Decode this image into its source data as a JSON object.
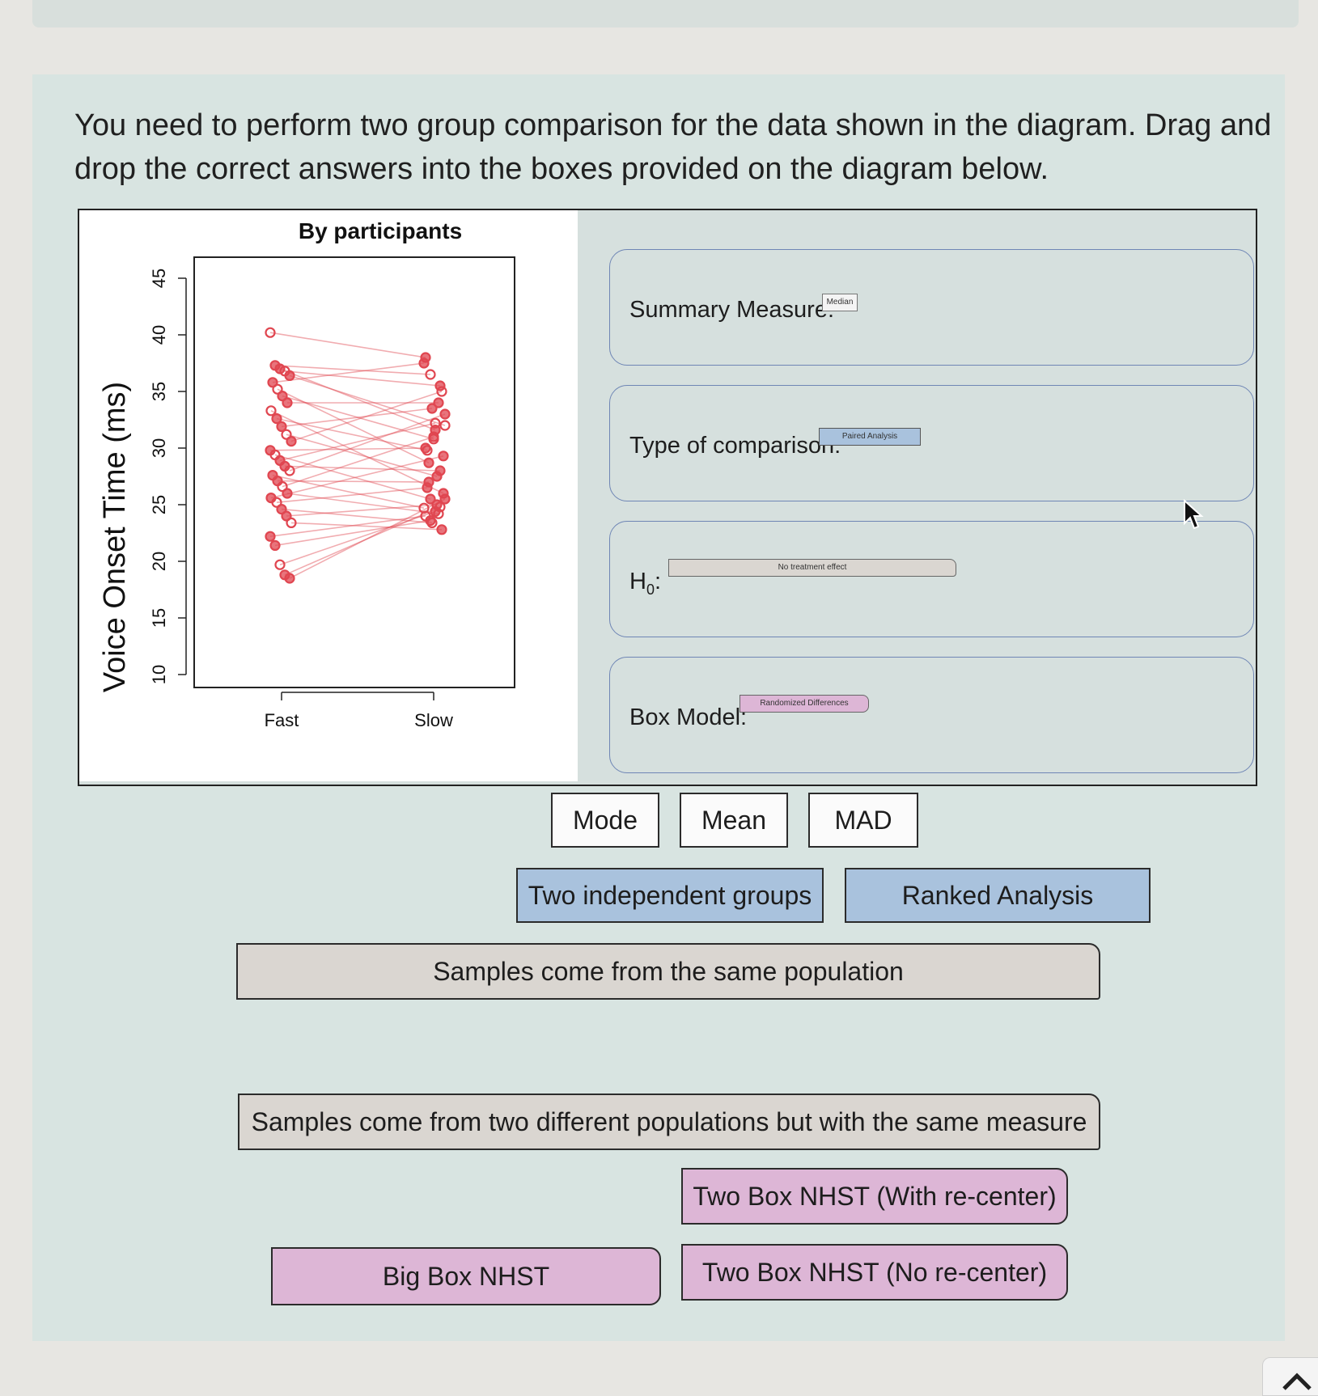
{
  "question": "You need to perform two group comparison for the data shown in the diagram. Drag and drop the correct answers into the boxes provided on the diagram below.",
  "chart_data": {
    "type": "line",
    "title": "By participants",
    "xlabel": "",
    "ylabel": "Voice Onset Time (ms)",
    "categories": [
      "Fast",
      "Slow"
    ],
    "ylim": [
      10,
      45
    ],
    "yticks": [
      "10",
      "15",
      "20",
      "25",
      "30",
      "35",
      "40",
      "45"
    ],
    "grid": false,
    "legend": "none",
    "series_color": "#e04650",
    "pairs": [
      [
        40.2,
        38.0
      ],
      [
        37.3,
        36.5
      ],
      [
        37.0,
        31.6
      ],
      [
        36.8,
        35.5
      ],
      [
        36.4,
        32.0
      ],
      [
        35.8,
        37.5
      ],
      [
        35.2,
        28.7
      ],
      [
        34.6,
        30.8
      ],
      [
        34.0,
        34.0
      ],
      [
        33.3,
        26.0
      ],
      [
        32.6,
        29.8
      ],
      [
        31.9,
        33.5
      ],
      [
        31.2,
        27.5
      ],
      [
        30.6,
        35.0
      ],
      [
        29.8,
        30.0
      ],
      [
        29.4,
        25.5
      ],
      [
        28.9,
        32.2
      ],
      [
        28.4,
        28.0
      ],
      [
        28.0,
        33.0
      ],
      [
        27.6,
        24.7
      ],
      [
        27.1,
        27.0
      ],
      [
        26.6,
        31.0
      ],
      [
        26.0,
        24.2
      ],
      [
        25.6,
        29.3
      ],
      [
        25.2,
        26.5
      ],
      [
        24.6,
        23.4
      ],
      [
        24.0,
        25.0
      ],
      [
        23.4,
        22.8
      ],
      [
        22.2,
        24.0
      ],
      [
        21.4,
        23.6
      ],
      [
        19.7,
        24.4
      ],
      [
        18.8,
        24.8
      ],
      [
        18.5,
        25.5
      ]
    ]
  },
  "dropzones": {
    "summary": {
      "label": "Summary Measure:",
      "placed": "Median"
    },
    "comparison": {
      "label": "Type of comparison:",
      "placed": "Paired Analysis"
    },
    "h0": {
      "label_main": "H",
      "label_sub": "0",
      "label_colon": ":",
      "placed": "No treatment effect"
    },
    "boxmodel": {
      "label": "Box Model:",
      "placed": "Randomized Differences"
    }
  },
  "choices": {
    "mode": "Mode",
    "mean": "Mean",
    "mad": "MAD",
    "two_groups": "Two independent groups",
    "ranked": "Ranked Analysis",
    "same_population": "Samples come from the same population",
    "two_populations": "Samples come from two different populations but with the same measure",
    "two_box_recenter": "Two Box NHST (With re-center)",
    "big_box": "Big Box NHST",
    "two_box_no_recenter": "Two Box NHST (No re-center)"
  },
  "colors": {
    "white_chip": "#fbfbfb",
    "blue_chip": "#a9c2dd",
    "tan_chip": "#dad6d1",
    "pink_chip": "#ddb6d6",
    "panel": "#d8e4e1"
  }
}
